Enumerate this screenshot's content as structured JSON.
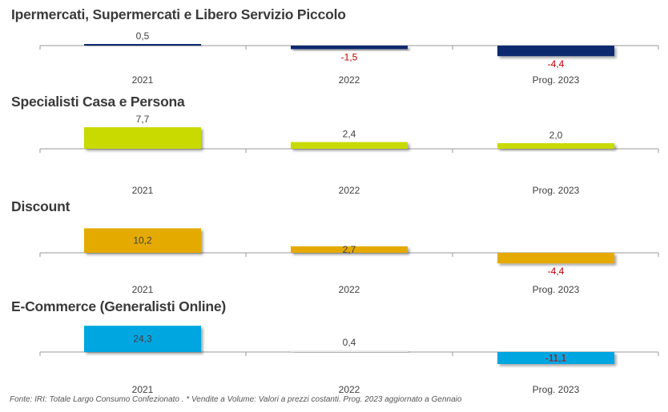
{
  "chart_data": [
    {
      "type": "bar",
      "title": "Ipermercati, Supermercati e Libero Servizio Piccolo",
      "categories": [
        "2021",
        "2022",
        "Prog. 2023"
      ],
      "values": [
        0.5,
        -1.5,
        -4.4
      ],
      "value_labels": [
        "0,5",
        "-1,5",
        "-4,4"
      ],
      "color": "#0a2a6e"
    },
    {
      "type": "bar",
      "title": "Specialisti Casa e Persona",
      "categories": [
        "2021",
        "2022",
        "Prog. 2023"
      ],
      "values": [
        7.7,
        2.4,
        2.0
      ],
      "value_labels": [
        "7,7",
        "2,4",
        "2,0"
      ],
      "color": "#c8da00"
    },
    {
      "type": "bar",
      "title": "Discount",
      "categories": [
        "2021",
        "2022",
        "Prog. 2023"
      ],
      "values": [
        10.2,
        2.7,
        -4.4
      ],
      "value_labels": [
        "10,2",
        "2,7",
        "-4,4"
      ],
      "color": "#e5aa00"
    },
    {
      "type": "bar",
      "title": "E-Commerce (Generalisti Online)",
      "categories": [
        "2021",
        "2022",
        "Prog. 2023"
      ],
      "values": [
        24.3,
        0.4,
        -11.1
      ],
      "value_labels": [
        "24,3",
        "0,4",
        "-11,1"
      ],
      "color": "#00a6e0",
      "second_color": "#ececec"
    }
  ],
  "colors": {
    "positive_label": "#404040",
    "negative_label": "#c00000",
    "axis": "#9a9a9a"
  },
  "footnote": "Fonte: IRI: Totale Largo Consumo Confezionato . * Vendite a Volume: Valori a prezzi costanti. Prog. 2023 aggiornato a Gennaio"
}
